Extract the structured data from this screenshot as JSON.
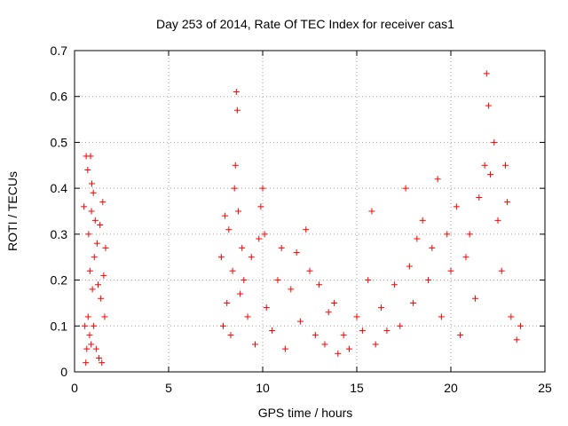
{
  "chart_data": {
    "type": "scatter",
    "title": "Day 253 of 2014, Rate Of TEC Index for receiver cas1",
    "xlabel": "GPS time / hours",
    "ylabel": "ROTI / TECUs",
    "xlim": [
      0,
      25
    ],
    "ylim": [
      0,
      0.7
    ],
    "x_ticks": [
      0,
      5,
      10,
      15,
      20,
      25
    ],
    "x_tick_labels": [
      "0",
      "5",
      "10",
      "15",
      "20",
      "25"
    ],
    "y_ticks": [
      0,
      0.1,
      0.2,
      0.3,
      0.4,
      0.5,
      0.6,
      0.7
    ],
    "y_tick_labels": [
      "0",
      "0.1",
      "0.2",
      "0.3",
      "0.4",
      "0.5",
      "0.6",
      "0.7"
    ],
    "grid": true,
    "marker": "+",
    "color": "#ff0000",
    "series": [
      {
        "name": "ROTI",
        "points": [
          [
            0.5,
            0.36
          ],
          [
            0.55,
            0.1
          ],
          [
            0.6,
            0.02
          ],
          [
            0.62,
            0.47
          ],
          [
            0.65,
            0.05
          ],
          [
            0.7,
            0.44
          ],
          [
            0.72,
            0.12
          ],
          [
            0.75,
            0.3
          ],
          [
            0.8,
            0.08
          ],
          [
            0.82,
            0.22
          ],
          [
            0.85,
            0.47
          ],
          [
            0.88,
            0.06
          ],
          [
            0.9,
            0.35
          ],
          [
            0.92,
            0.41
          ],
          [
            0.95,
            0.18
          ],
          [
            1.0,
            0.39
          ],
          [
            1.02,
            0.1
          ],
          [
            1.05,
            0.25
          ],
          [
            1.1,
            0.33
          ],
          [
            1.15,
            0.05
          ],
          [
            1.2,
            0.28
          ],
          [
            1.25,
            0.19
          ],
          [
            1.3,
            0.03
          ],
          [
            1.35,
            0.32
          ],
          [
            1.4,
            0.16
          ],
          [
            1.45,
            0.02
          ],
          [
            1.5,
            0.37
          ],
          [
            1.55,
            0.21
          ],
          [
            1.6,
            0.12
          ],
          [
            1.65,
            0.27
          ],
          [
            7.8,
            0.25
          ],
          [
            7.9,
            0.1
          ],
          [
            8.0,
            0.34
          ],
          [
            8.1,
            0.15
          ],
          [
            8.2,
            0.31
          ],
          [
            8.3,
            0.08
          ],
          [
            8.4,
            0.22
          ],
          [
            8.5,
            0.4
          ],
          [
            8.55,
            0.45
          ],
          [
            8.6,
            0.61
          ],
          [
            8.65,
            0.57
          ],
          [
            8.7,
            0.35
          ],
          [
            8.8,
            0.17
          ],
          [
            8.9,
            0.27
          ],
          [
            9.0,
            0.2
          ],
          [
            9.2,
            0.12
          ],
          [
            9.4,
            0.25
          ],
          [
            9.6,
            0.06
          ],
          [
            9.8,
            0.29
          ],
          [
            9.9,
            0.36
          ],
          [
            10.0,
            0.4
          ],
          [
            10.1,
            0.3
          ],
          [
            10.2,
            0.14
          ],
          [
            10.5,
            0.09
          ],
          [
            10.8,
            0.2
          ],
          [
            11.0,
            0.27
          ],
          [
            11.2,
            0.05
          ],
          [
            11.5,
            0.18
          ],
          [
            11.8,
            0.26
          ],
          [
            12.0,
            0.11
          ],
          [
            12.3,
            0.31
          ],
          [
            12.5,
            0.22
          ],
          [
            12.8,
            0.08
          ],
          [
            13.0,
            0.19
          ],
          [
            13.3,
            0.06
          ],
          [
            13.5,
            0.13
          ],
          [
            13.8,
            0.15
          ],
          [
            14.0,
            0.04
          ],
          [
            14.3,
            0.08
          ],
          [
            14.6,
            0.05
          ],
          [
            15.0,
            0.12
          ],
          [
            15.3,
            0.09
          ],
          [
            15.6,
            0.2
          ],
          [
            15.8,
            0.35
          ],
          [
            16.0,
            0.06
          ],
          [
            16.3,
            0.14
          ],
          [
            16.6,
            0.09
          ],
          [
            17.0,
            0.19
          ],
          [
            17.3,
            0.1
          ],
          [
            17.6,
            0.4
          ],
          [
            17.8,
            0.23
          ],
          [
            18.0,
            0.15
          ],
          [
            18.2,
            0.29
          ],
          [
            18.5,
            0.33
          ],
          [
            18.8,
            0.2
          ],
          [
            19.0,
            0.27
          ],
          [
            19.3,
            0.42
          ],
          [
            19.5,
            0.12
          ],
          [
            19.8,
            0.3
          ],
          [
            20.0,
            0.22
          ],
          [
            20.3,
            0.36
          ],
          [
            20.5,
            0.08
          ],
          [
            20.8,
            0.25
          ],
          [
            21.0,
            0.3
          ],
          [
            21.3,
            0.16
          ],
          [
            21.5,
            0.38
          ],
          [
            21.8,
            0.45
          ],
          [
            21.9,
            0.65
          ],
          [
            22.0,
            0.58
          ],
          [
            22.1,
            0.43
          ],
          [
            22.3,
            0.5
          ],
          [
            22.5,
            0.33
          ],
          [
            22.7,
            0.22
          ],
          [
            22.9,
            0.45
          ],
          [
            23.0,
            0.37
          ],
          [
            23.2,
            0.12
          ],
          [
            23.5,
            0.07
          ],
          [
            23.7,
            0.1
          ]
        ]
      }
    ]
  }
}
